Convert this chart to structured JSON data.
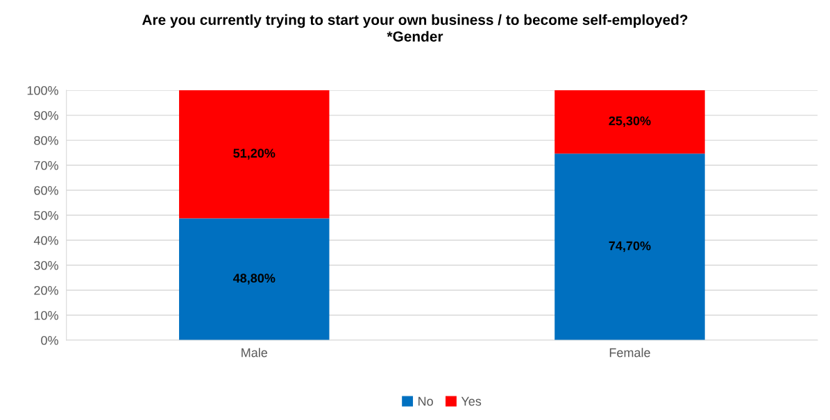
{
  "chart_data": {
    "type": "bar",
    "stacked": true,
    "title": "Are you currently trying to start your own business / to become self-employed?\n*Gender",
    "categories": [
      "Male",
      "Female"
    ],
    "series": [
      {
        "name": "No",
        "color": "#0070c0",
        "values": [
          48.8,
          74.7
        ],
        "value_labels": [
          "48,80%",
          "74,70%"
        ]
      },
      {
        "name": "Yes",
        "color": "#ff0000",
        "values": [
          51.2,
          25.3
        ],
        "value_labels": [
          "51,20%",
          "25,30%"
        ]
      }
    ],
    "ylim": [
      0,
      100
    ],
    "yticks": [
      {
        "value": 0,
        "label": "0%"
      },
      {
        "value": 10,
        "label": "10%"
      },
      {
        "value": 20,
        "label": "20%"
      },
      {
        "value": 30,
        "label": "30%"
      },
      {
        "value": 40,
        "label": "40%"
      },
      {
        "value": 50,
        "label": "50%"
      },
      {
        "value": 60,
        "label": "60%"
      },
      {
        "value": 70,
        "label": "70%"
      },
      {
        "value": 80,
        "label": "80%"
      },
      {
        "value": 90,
        "label": "90%"
      },
      {
        "value": 100,
        "label": "100%"
      }
    ],
    "grid": "y",
    "legend": "bottom"
  }
}
